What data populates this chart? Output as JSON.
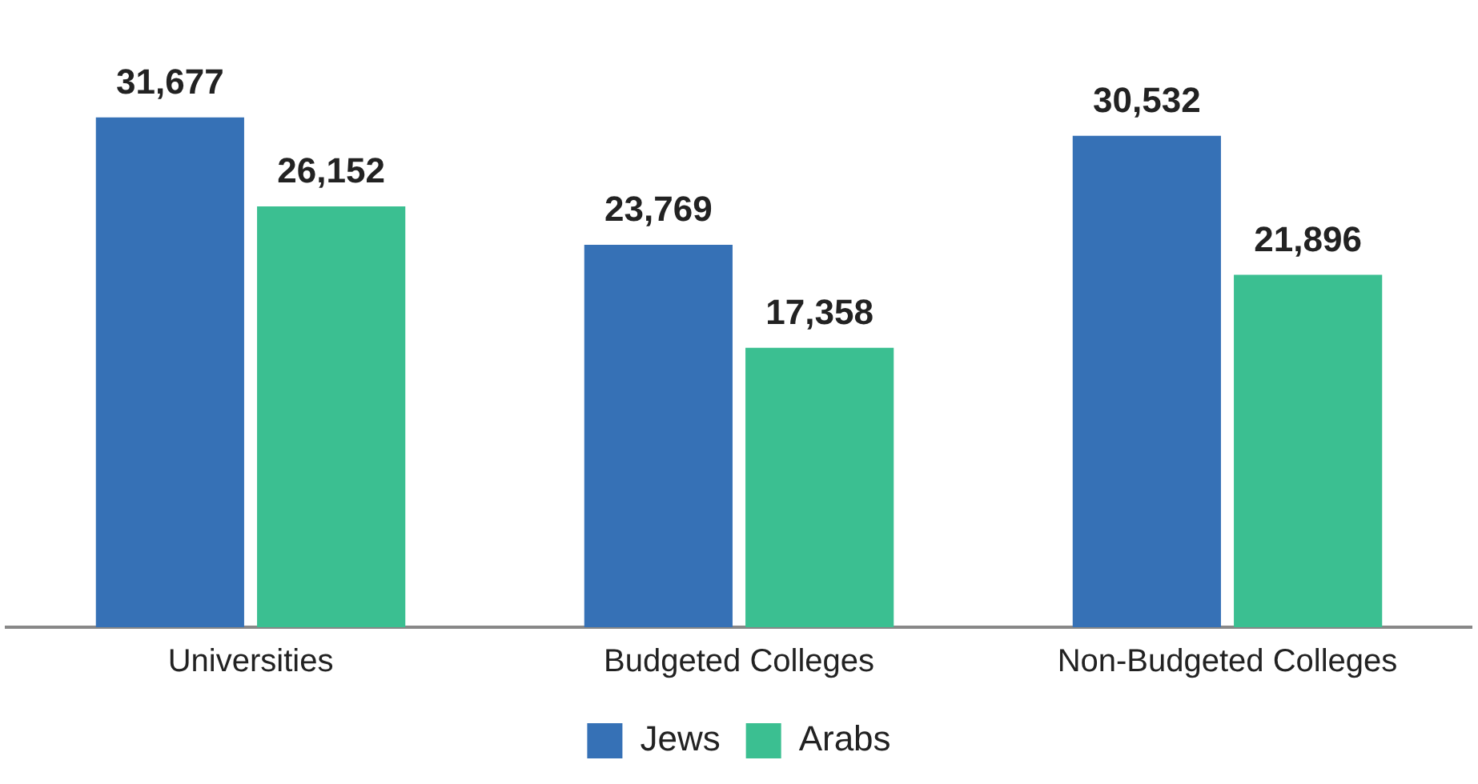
{
  "chart_data": {
    "type": "bar",
    "categories": [
      "Universities",
      "Budgeted Colleges",
      "Non-Budgeted Colleges"
    ],
    "series": [
      {
        "name": "Jews",
        "color": "#3671b6",
        "values": [
          31677,
          23769,
          30532
        ],
        "value_labels": [
          "31,677",
          "23,769",
          "30,532"
        ]
      },
      {
        "name": "Arabs",
        "color": "#3bbf91",
        "values": [
          26152,
          17358,
          21896
        ],
        "value_labels": [
          "26,152",
          "17,358",
          "21,896"
        ]
      }
    ],
    "legend": "bottom",
    "grid": false
  }
}
